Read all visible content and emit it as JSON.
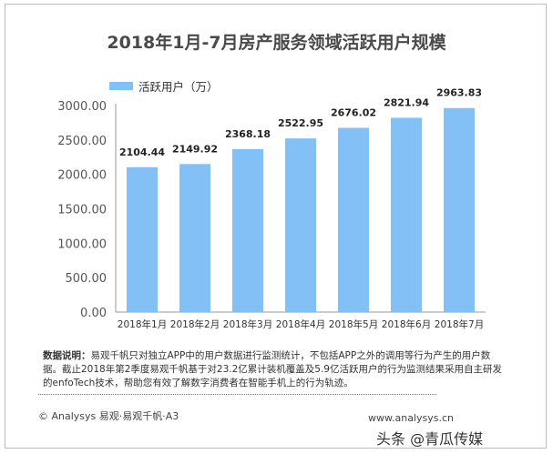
{
  "chart_data": {
    "type": "bar",
    "title": "2018年1月-7月房产服务领域活跃用户规模",
    "categories": [
      "2018年1月",
      "2018年2月",
      "2018年3月",
      "2018年4月",
      "2018年5月",
      "2018年6月",
      "2018年7月"
    ],
    "series": [
      {
        "name": "活跃用户（万）",
        "values": [
          2104.44,
          2149.92,
          2368.18,
          2522.95,
          2676.02,
          2821.94,
          2963.83
        ]
      }
    ],
    "value_labels": [
      "2104.44",
      "2149.92",
      "2368.18",
      "2522.95",
      "2676.02",
      "2821.94",
      "2963.83"
    ],
    "y_ticks": [
      "0.00",
      "500.00",
      "1000.00",
      "1500.00",
      "2000.00",
      "2500.00",
      "3000.00"
    ],
    "ylim": [
      0,
      3000
    ],
    "grid": false,
    "legend": "top-left",
    "color": "#82c0f6"
  },
  "footer": {
    "note_label": "数据说明：",
    "note_text": "易观千帆只对独立APP中的用户数据进行监测统计，不包括APP之外的调用等行为产生的用户数据。截止2018年第2季度易观千帆基于对23.2亿累计装机覆盖及5.9亿活跃用户的行为监测结果采用自主研发的enfoTech技术，帮助您有效了解数字消费者在智能手机上的行为轨迹。",
    "copyright": "© Analysys 易观·易观千帆·A3",
    "website": "www.analysys.cn",
    "watermark": "头条 @青瓜传媒"
  }
}
